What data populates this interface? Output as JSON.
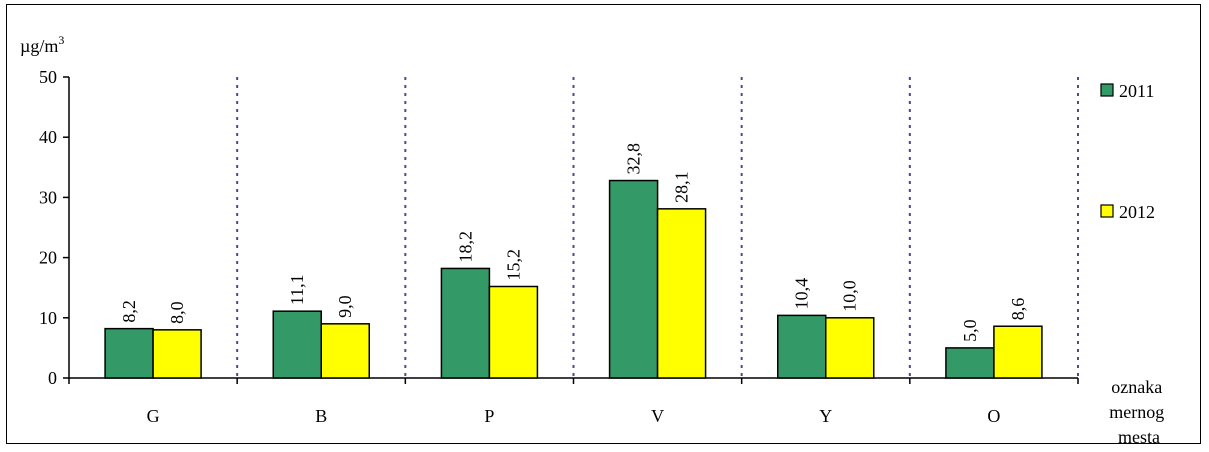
{
  "chart_data": {
    "type": "bar",
    "unit_label": "µg/m",
    "unit_superscript": "3",
    "categories": [
      "G",
      "B",
      "P",
      "V",
      "Y",
      "O"
    ],
    "series": [
      {
        "name": "2011",
        "values": [
          8.2,
          11.1,
          18.2,
          32.8,
          10.4,
          5.0
        ],
        "labels": [
          "8,2",
          "11,1",
          "18,2",
          "32,8",
          "10,4",
          "5,0"
        ],
        "color": "#339966"
      },
      {
        "name": "2012",
        "values": [
          8.0,
          9.0,
          15.2,
          28.1,
          10.0,
          8.6
        ],
        "labels": [
          "8,0",
          "9,0",
          "15,2",
          "28,1",
          "10,0",
          "8,6"
        ],
        "color": "#ffff00"
      }
    ],
    "ylim": [
      0,
      50
    ],
    "yticks": [
      0,
      10,
      20,
      30,
      40,
      50
    ],
    "xlabel_lines": [
      "oznaka",
      "mernog",
      "mesta"
    ],
    "legend_position": "right",
    "category_separators": "dotted",
    "separator_color": "#4a4a8a"
  }
}
